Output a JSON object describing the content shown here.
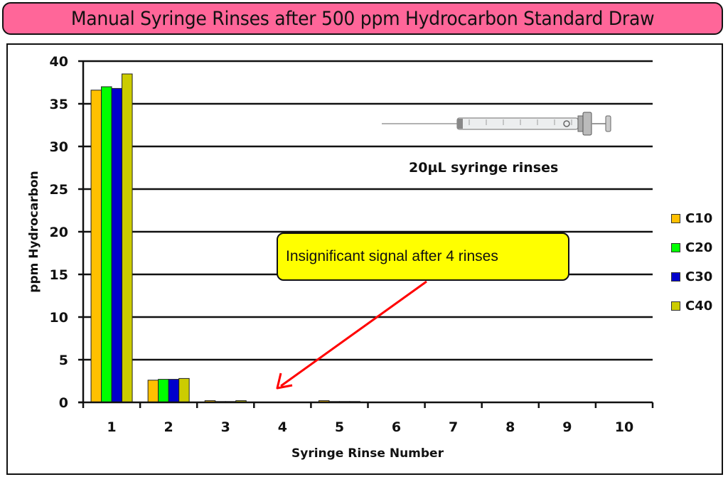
{
  "title": "Manual Syringe Rinses after 500 ppm Hydrocarbon Standard Draw",
  "annotations": {
    "callout": "Insignificant signal after 4 rinses",
    "note": "20µL syringe rinses",
    "image": "syringe-illustration"
  },
  "colors": {
    "title_bg": "#ff6699",
    "callout_bg": "#ffff00",
    "arrow": "#ff0000",
    "C10": "#ffc000",
    "C20": "#00ff00",
    "C30": "#0000cc",
    "C40": "#cccc00"
  },
  "chart_data": {
    "type": "bar",
    "title": "Manual Syringe Rinses after 500 ppm Hydrocarbon Standard Draw",
    "xlabel": "Syringe Rinse Number",
    "ylabel": "ppm Hydrocarbon",
    "ylim": [
      0,
      40
    ],
    "yticks": [
      0,
      5,
      10,
      15,
      20,
      25,
      30,
      35,
      40
    ],
    "grid": true,
    "legend_position": "right",
    "categories": [
      "1",
      "2",
      "3",
      "4",
      "5",
      "6",
      "7",
      "8",
      "9",
      "10"
    ],
    "series": [
      {
        "name": "C10",
        "color": "#ffc000",
        "values": [
          36.6,
          2.6,
          0.2,
          0,
          0.2,
          0,
          0,
          0,
          0,
          0
        ]
      },
      {
        "name": "C20",
        "color": "#00ff00",
        "values": [
          37.0,
          2.7,
          0.1,
          0,
          0.1,
          0,
          0,
          0,
          0,
          0
        ]
      },
      {
        "name": "C30",
        "color": "#0000cc",
        "values": [
          36.8,
          2.7,
          0.1,
          0,
          0.1,
          0,
          0,
          0,
          0,
          0
        ]
      },
      {
        "name": "C40",
        "color": "#cccc00",
        "values": [
          38.5,
          2.8,
          0.2,
          0,
          0.1,
          0,
          0,
          0,
          0,
          0
        ]
      }
    ],
    "annotations": [
      {
        "text": "Insignificant signal after 4 rinses",
        "type": "callout-arrow",
        "points_to": "rinse 4"
      },
      {
        "text": "20µL syringe rinses",
        "type": "text"
      }
    ]
  }
}
